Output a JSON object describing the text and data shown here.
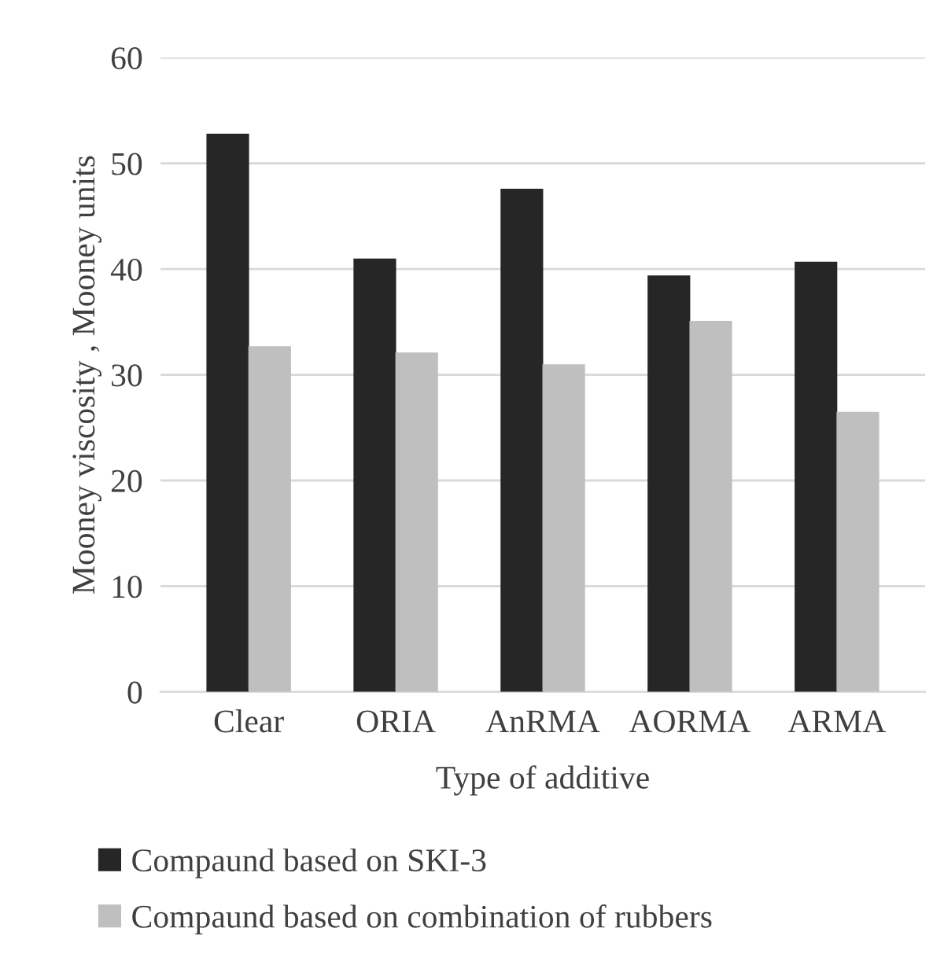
{
  "chart_data": {
    "type": "bar",
    "xlabel": "Type of additive",
    "ylabel": "Mooney viscosity , Mooney units",
    "categories": [
      "Clear",
      "ORIA",
      "AnRMA",
      "AORMA",
      "ARMA"
    ],
    "series": [
      {
        "name": "Compaund based on SKI-3",
        "color": "#262626",
        "values": [
          52.8,
          41.0,
          47.6,
          39.4,
          40.7
        ]
      },
      {
        "name": "Compaund based on combination of rubbers",
        "color": "#bfbfbf",
        "values": [
          32.7,
          32.1,
          31.0,
          35.1,
          26.5
        ]
      }
    ],
    "ylim": [
      0,
      60
    ],
    "yticks": [
      0,
      10,
      20,
      30,
      40,
      50,
      60
    ],
    "grid": "y",
    "legend": "bottom"
  }
}
